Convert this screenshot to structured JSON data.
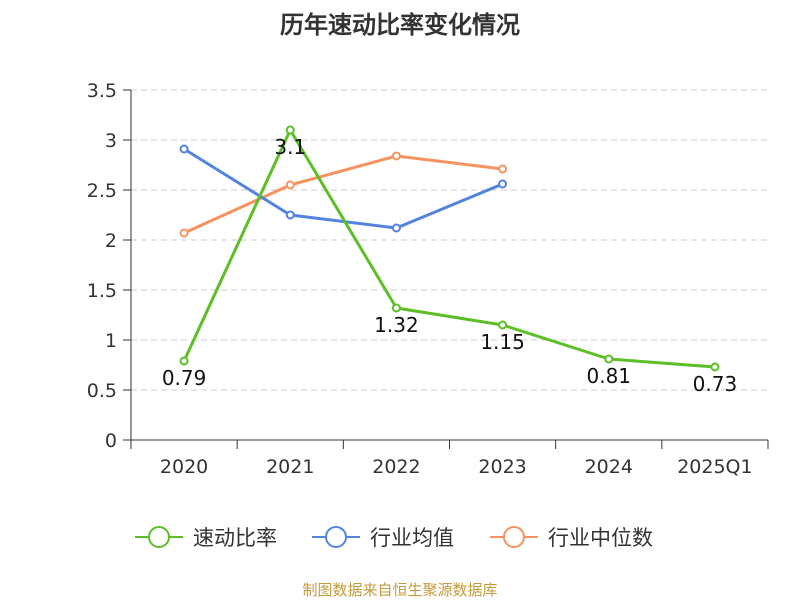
{
  "chart_data": {
    "type": "line",
    "title": "历年速动比率变化情况",
    "categories": [
      "2020",
      "2021",
      "2022",
      "2023",
      "2024",
      "2025Q1"
    ],
    "ylim": [
      0,
      3.5
    ],
    "yticks": [
      "0",
      "0.5",
      "1",
      "1.5",
      "2",
      "2.5",
      "3",
      "3.5"
    ],
    "ytick_values": [
      0,
      0.5,
      1,
      1.5,
      2,
      2.5,
      3,
      3.5
    ],
    "grid": true,
    "legend_position": "bottom",
    "series": [
      {
        "name": "速动比率",
        "color": "#5cbf26",
        "values": [
          0.79,
          3.1,
          1.32,
          1.15,
          0.81,
          0.73
        ],
        "labels": [
          "0.79",
          "3.1",
          "1.32",
          "1.15",
          "0.81",
          "0.73"
        ],
        "show_labels": true
      },
      {
        "name": "行业均值",
        "color": "#5283e0",
        "values": [
          2.91,
          2.25,
          2.12,
          2.56,
          null,
          null
        ],
        "show_labels": false
      },
      {
        "name": "行业中位数",
        "color": "#f69461",
        "values": [
          2.07,
          2.55,
          2.84,
          2.71,
          null,
          null
        ],
        "show_labels": false
      }
    ]
  },
  "source_text": "制图数据来自恒生聚源数据库",
  "colors": {
    "grid": "#cccccc",
    "axis": "#333333",
    "source": "#c49a3c",
    "title": "#333333"
  }
}
